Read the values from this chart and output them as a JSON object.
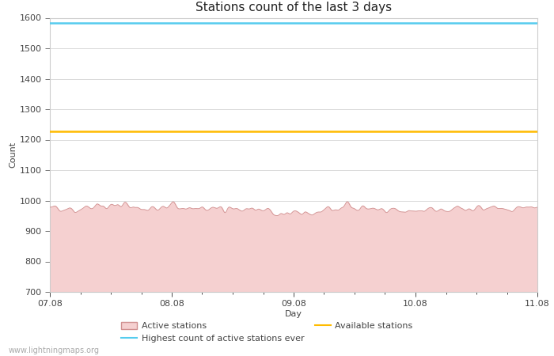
{
  "title": "Stations count of the last 3 days",
  "xlabel": "Day",
  "ylabel": "Count",
  "ylim": [
    700,
    1600
  ],
  "yticks": [
    700,
    800,
    900,
    1000,
    1100,
    1200,
    1300,
    1400,
    1500,
    1600
  ],
  "x_start": 0,
  "x_end": 96,
  "xtick_positions": [
    0,
    24,
    48,
    72,
    96
  ],
  "xtick_labels": [
    "07.08",
    "08.08",
    "09.08",
    "10.08",
    "11.08"
  ],
  "highest_ever_value": 1582,
  "available_stations_value": 1228,
  "active_stations_base": 977,
  "active_stations_noise": 6,
  "active_fill_color": "#f5d0d0",
  "active_line_color": "#d09090",
  "highest_line_color": "#55ccee",
  "available_line_color": "#ffbb00",
  "background_color": "#ffffff",
  "grid_color": "#cccccc",
  "watermark": "www.lightningmaps.org",
  "title_fontsize": 11,
  "axis_label_fontsize": 8,
  "tick_fontsize": 8,
  "legend_fontsize": 8,
  "watermark_fontsize": 7
}
